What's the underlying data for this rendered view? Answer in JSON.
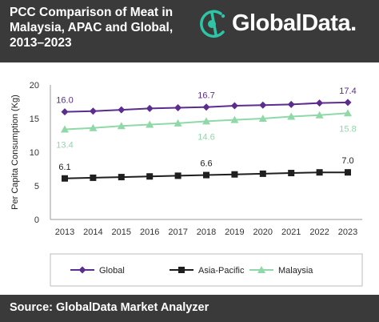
{
  "header": {
    "title_lines": [
      "PCC Comparison of Meat in",
      "Malaysia, APAC and Global,",
      "2013–2023"
    ],
    "logo_text": "GlobalData.",
    "logo_icon": "globaldata-logo-icon",
    "background": "#3a3a3a",
    "logo_accent": "#2ec4a6"
  },
  "footer": {
    "source": "Source: GlobalData Market Analyzer"
  },
  "chart_data": {
    "type": "line",
    "title": "PCC Comparison of Meat in Malaysia, APAC and Global, 2013–2023",
    "ylabel": "Per Capita Consumption (Kg)",
    "xlabel": "",
    "x": [
      "2013",
      "2014",
      "2015",
      "2016",
      "2017",
      "2018",
      "2019",
      "2020",
      "2021",
      "2022",
      "2023"
    ],
    "ylim": [
      0,
      20
    ],
    "yticks": [
      0,
      5,
      10,
      15,
      20
    ],
    "grid": false,
    "legend_position": "bottom",
    "series": [
      {
        "name": "Global",
        "color": "#5b2d8e",
        "marker": "diamond",
        "values": [
          16.0,
          16.1,
          16.3,
          16.5,
          16.6,
          16.7,
          16.9,
          17.0,
          17.1,
          17.3,
          17.4
        ],
        "labels": [
          {
            "index": 0,
            "text": "16.0"
          },
          {
            "index": 5,
            "text": "16.7"
          },
          {
            "index": 10,
            "text": "17.4"
          }
        ],
        "label_position": "above"
      },
      {
        "name": "Asia-Pacific",
        "color": "#1f1f1f",
        "marker": "square",
        "values": [
          6.1,
          6.2,
          6.3,
          6.4,
          6.5,
          6.6,
          6.7,
          6.8,
          6.9,
          7.0,
          7.0
        ],
        "labels": [
          {
            "index": 0,
            "text": "6.1"
          },
          {
            "index": 5,
            "text": "6.6"
          },
          {
            "index": 10,
            "text": "7.0"
          }
        ],
        "label_position": "above"
      },
      {
        "name": "Malaysia",
        "color": "#8fd9a8",
        "marker": "triangle",
        "values": [
          13.4,
          13.6,
          13.9,
          14.1,
          14.3,
          14.6,
          14.8,
          15.0,
          15.3,
          15.5,
          15.8
        ],
        "labels": [
          {
            "index": 0,
            "text": "13.4"
          },
          {
            "index": 5,
            "text": "14.6"
          },
          {
            "index": 10,
            "text": "15.8"
          }
        ],
        "label_position": "below"
      }
    ]
  }
}
